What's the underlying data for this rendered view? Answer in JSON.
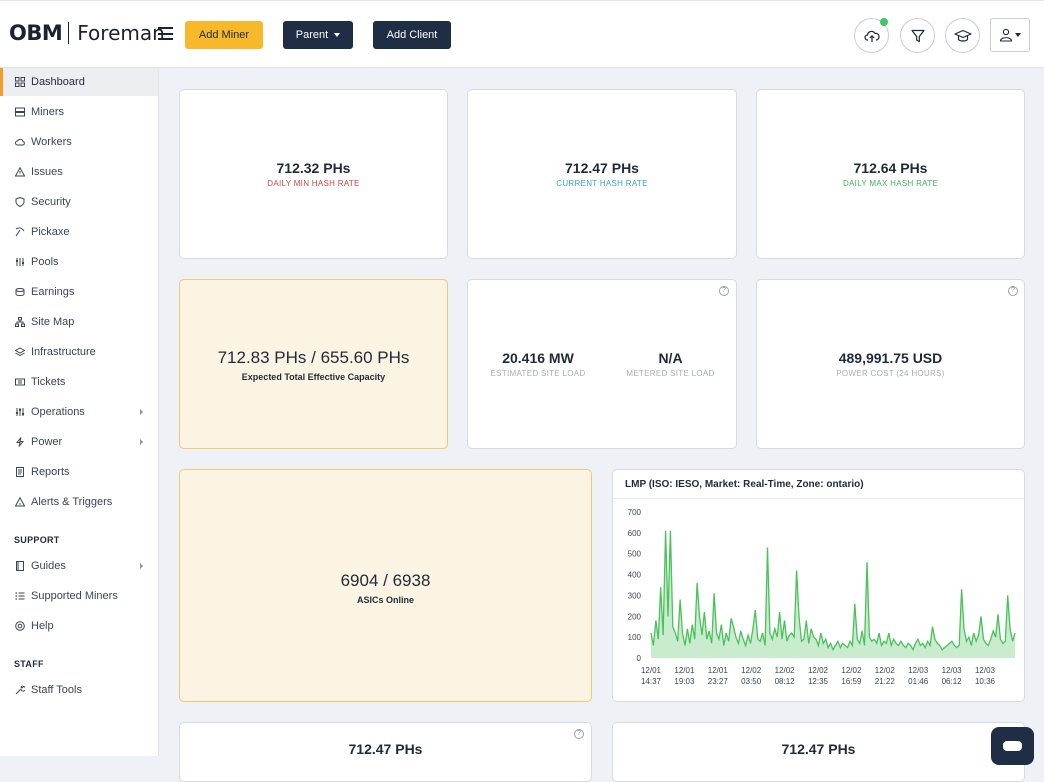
{
  "header": {
    "logo_obm": "OBM",
    "logo_foreman": "Foreman",
    "add_miner": "Add Miner",
    "parent": "Parent",
    "add_client": "Add Client"
  },
  "sidebar": {
    "items": [
      {
        "label": "Dashboard",
        "icon": "dashboard-icon"
      },
      {
        "label": "Miners",
        "icon": "server-icon"
      },
      {
        "label": "Workers",
        "icon": "cloud-icon"
      },
      {
        "label": "Issues",
        "icon": "warning-icon"
      },
      {
        "label": "Security",
        "icon": "shield-icon"
      },
      {
        "label": "Pickaxe",
        "icon": "pickaxe-icon"
      },
      {
        "label": "Pools",
        "icon": "pools-icon"
      },
      {
        "label": "Earnings",
        "icon": "coins-icon"
      },
      {
        "label": "Site Map",
        "icon": "sitemap-icon"
      },
      {
        "label": "Infrastructure",
        "icon": "layers-icon"
      },
      {
        "label": "Tickets",
        "icon": "ticket-icon"
      },
      {
        "label": "Operations",
        "icon": "sliders-icon"
      },
      {
        "label": "Power",
        "icon": "bolt-icon"
      },
      {
        "label": "Reports",
        "icon": "report-icon"
      },
      {
        "label": "Alerts & Triggers",
        "icon": "alerts-icon"
      }
    ],
    "support_title": "SUPPORT",
    "support_items": [
      {
        "label": "Guides",
        "icon": "book-icon"
      },
      {
        "label": "Supported Miners",
        "icon": "list-icon"
      },
      {
        "label": "Help",
        "icon": "lifebuoy-icon"
      }
    ],
    "staff_title": "STAFF",
    "staff_items": [
      {
        "label": "Staff Tools",
        "icon": "tools-icon"
      }
    ]
  },
  "kpis": {
    "min_hash": {
      "value": "712.32 PHs",
      "label": "DAILY MIN HASH RATE"
    },
    "current_hash": {
      "value": "712.47 PHs",
      "label": "CURRENT HASH RATE"
    },
    "max_hash": {
      "value": "712.64 PHs",
      "label": "DAILY MAX HASH RATE"
    },
    "capacity": {
      "value": "712.83 PHs / 655.60 PHs",
      "label": "Expected Total Effective Capacity"
    },
    "site_load": {
      "value": "20.416 MW",
      "label": "ESTIMATED SITE LOAD"
    },
    "metered_load": {
      "value": "N/A",
      "label": "METERED SITE LOAD"
    },
    "power_cost": {
      "value": "489,991.75 USD",
      "label": "POWER COST (24 HOURS)"
    },
    "asics": {
      "value": "6904 / 6938",
      "label": "ASICs Online"
    },
    "bottom_left": {
      "value": "712.47 PHs"
    },
    "bottom_right": {
      "value": "712.47 PHs"
    }
  },
  "help_glyph": "?",
  "chart_data": {
    "type": "area",
    "title": "LMP (ISO: IESO, Market: Real-Time, Zone: ontario)",
    "ylim": [
      0,
      700
    ],
    "yticks": [
      "700",
      "600",
      "500",
      "400",
      "300",
      "200",
      "100",
      "0"
    ],
    "xticks": [
      [
        "12/01",
        "14:37"
      ],
      [
        "12/01",
        "19:03"
      ],
      [
        "12/01",
        "23:27"
      ],
      [
        "12/02",
        "03:50"
      ],
      [
        "12/02",
        "08:12"
      ],
      [
        "12/02",
        "12:35"
      ],
      [
        "12/02",
        "16:59"
      ],
      [
        "12/02",
        "21:22"
      ],
      [
        "12/03",
        "01:46"
      ],
      [
        "12/03",
        "06:12"
      ],
      [
        "12/03",
        "10:36"
      ]
    ],
    "color": "#4cc05c",
    "fill": "#c9ecce",
    "values": [
      120,
      60,
      180,
      90,
      340,
      110,
      610,
      200,
      610,
      150,
      120,
      80,
      280,
      120,
      60,
      140,
      70,
      160,
      90,
      360,
      200,
      110,
      220,
      90,
      130,
      70,
      310,
      120,
      90,
      160,
      60,
      120,
      80,
      190,
      150,
      100,
      70,
      130,
      90,
      60,
      110,
      70,
      140,
      230,
      90,
      80,
      120,
      60,
      530,
      120,
      90,
      140,
      100,
      220,
      90,
      180,
      80,
      110,
      120,
      100,
      420,
      200,
      80,
      90,
      180,
      70,
      140,
      100,
      90,
      60,
      120,
      70,
      90,
      50,
      70,
      40,
      60,
      80,
      50,
      70,
      60,
      50,
      80,
      60,
      260,
      90,
      70,
      130,
      60,
      460,
      100,
      80,
      90,
      70,
      120,
      60,
      80,
      70,
      120,
      60,
      90,
      70,
      60,
      80,
      60,
      50,
      70,
      60,
      40,
      70,
      90,
      60,
      70,
      50,
      80,
      60,
      150,
      90,
      70,
      60,
      40,
      50,
      60,
      70,
      80,
      60,
      50,
      60,
      330,
      140,
      80,
      100,
      60,
      120,
      80,
      110,
      200,
      90,
      70,
      60,
      90,
      130,
      100,
      210,
      90,
      70,
      80,
      300,
      140,
      80,
      120
    ]
  }
}
